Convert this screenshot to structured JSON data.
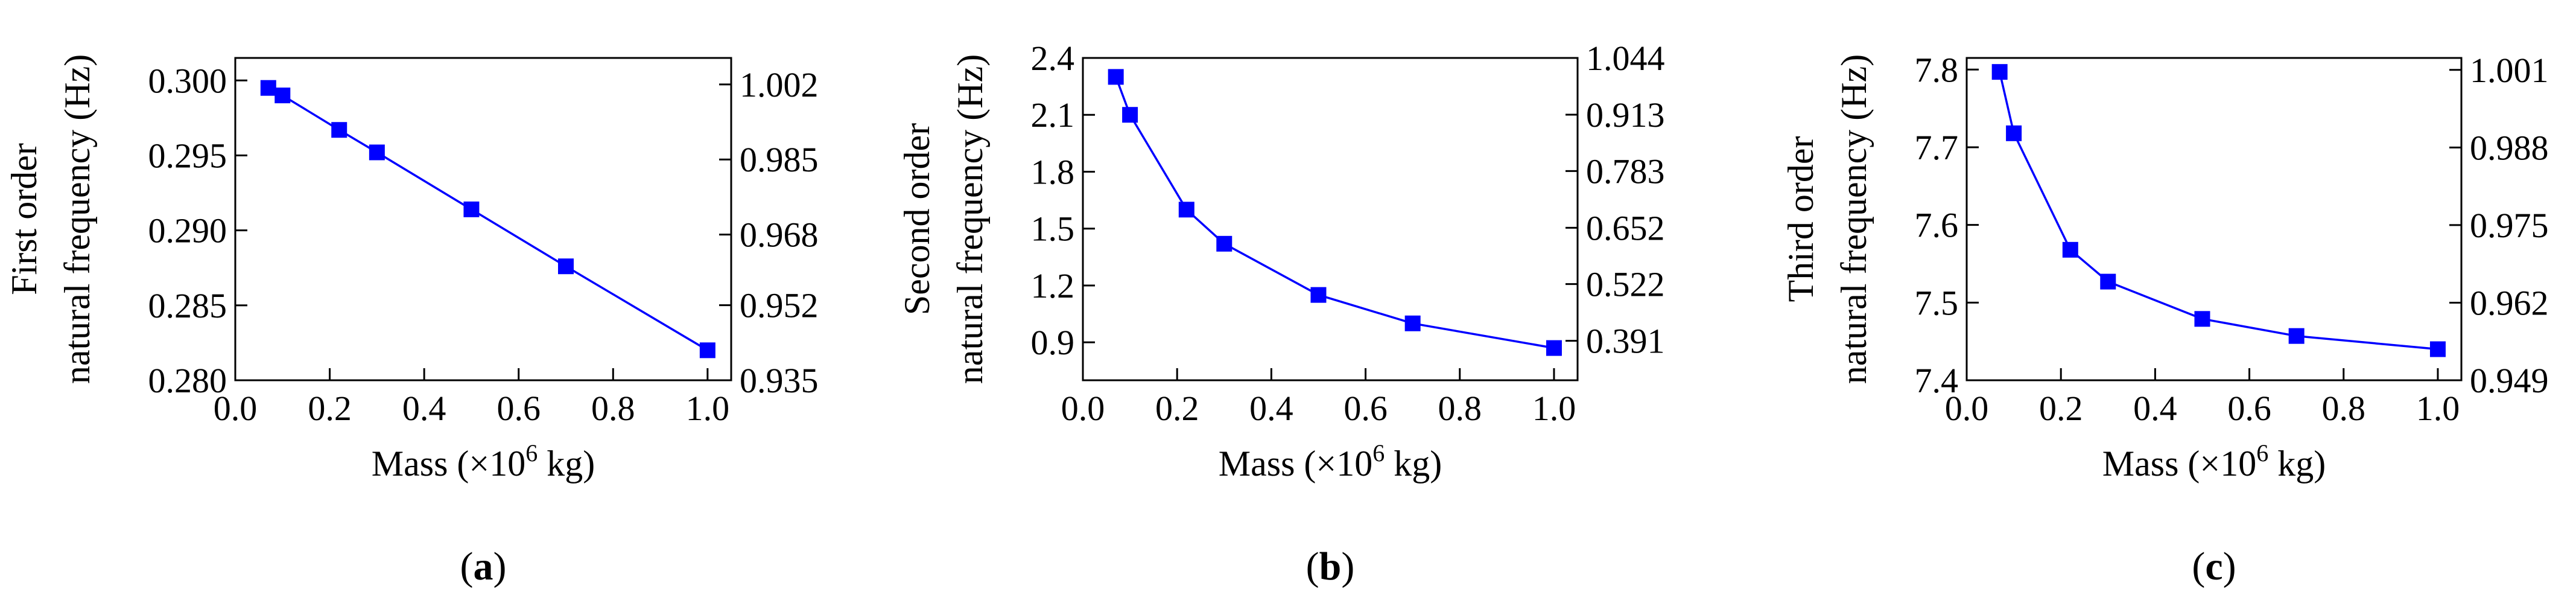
{
  "colors": {
    "series": "#0000FF",
    "axis": "#000000"
  },
  "chart_data": [
    {
      "type": "line",
      "panel_label": "a",
      "xlabel": "Mass (×10",
      "xlabel_exp": "6",
      "xlabel_tail": " kg)",
      "ylabel_line1": "First order",
      "ylabel_line2": "natural frequency (Hz)",
      "xlim": [
        0.0,
        1.05
      ],
      "xticks": [
        "0.0",
        "0.2",
        "0.4",
        "0.6",
        "0.8",
        "1.0"
      ],
      "xtick_values": [
        0.0,
        0.2,
        0.4,
        0.6,
        0.8,
        1.0
      ],
      "ylim": [
        0.28,
        0.3015
      ],
      "yticks": [
        "0.280",
        "0.285",
        "0.290",
        "0.295",
        "0.300"
      ],
      "ytick_values": [
        0.28,
        0.285,
        0.29,
        0.295,
        0.3
      ],
      "right_ylim": [
        0.935,
        1.008
      ],
      "right_yticks": [
        "0.935",
        "0.952",
        "0.968",
        "0.985",
        "1.002"
      ],
      "right_ytick_values": [
        0.935,
        0.952,
        0.968,
        0.985,
        1.002
      ],
      "series": [
        {
          "name": "First order natural frequency",
          "x": [
            0.07,
            0.1,
            0.22,
            0.3,
            0.5,
            0.7,
            1.0
          ],
          "y": [
            0.2995,
            0.299,
            0.2967,
            0.2952,
            0.2914,
            0.2876,
            0.282
          ]
        }
      ]
    },
    {
      "type": "line",
      "panel_label": "b",
      "xlabel": "Mass (×10",
      "xlabel_exp": "6",
      "xlabel_tail": " kg)",
      "ylabel_line1": "Second order",
      "ylabel_line2": "natural frequency (Hz)",
      "xlim": [
        0.0,
        1.05
      ],
      "xticks": [
        "0.0",
        "0.2",
        "0.4",
        "0.6",
        "0.8",
        "1.0"
      ],
      "xtick_values": [
        0.0,
        0.2,
        0.4,
        0.6,
        0.8,
        1.0
      ],
      "ylim": [
        0.7,
        2.4
      ],
      "yticks": [
        "0.9",
        "1.2",
        "1.5",
        "1.8",
        "2.1",
        "2.4"
      ],
      "ytick_values": [
        0.9,
        1.2,
        1.5,
        1.8,
        2.1,
        2.4
      ],
      "right_ylim": [
        0.3,
        1.044
      ],
      "right_yticks": [
        "0.391",
        "0.522",
        "0.652",
        "0.783",
        "0.913",
        "1.044"
      ],
      "right_ytick_values": [
        0.391,
        0.522,
        0.652,
        0.783,
        0.913,
        1.044
      ],
      "series": [
        {
          "name": "Second order natural frequency",
          "x": [
            0.07,
            0.1,
            0.22,
            0.3,
            0.5,
            0.7,
            1.0
          ],
          "y": [
            2.3,
            2.1,
            1.6,
            1.42,
            1.15,
            1.0,
            0.87
          ]
        }
      ]
    },
    {
      "type": "line",
      "panel_label": "c",
      "xlabel": "Mass (×10",
      "xlabel_exp": "6",
      "xlabel_tail": " kg)",
      "ylabel_line1": "Third order",
      "ylabel_line2": "natural frequency (Hz)",
      "xlim": [
        0.0,
        1.05
      ],
      "xticks": [
        "0.0",
        "0.2",
        "0.4",
        "0.6",
        "0.8",
        "1.0"
      ],
      "xtick_values": [
        0.0,
        0.2,
        0.4,
        0.6,
        0.8,
        1.0
      ],
      "ylim": [
        7.4,
        7.815
      ],
      "yticks": [
        "7.4",
        "7.5",
        "7.6",
        "7.7",
        "7.8"
      ],
      "ytick_values": [
        7.4,
        7.5,
        7.6,
        7.7,
        7.8
      ],
      "right_ylim": [
        0.949,
        1.003
      ],
      "right_yticks": [
        "0.949",
        "0.962",
        "0.975",
        "0.988",
        "1.001"
      ],
      "right_ytick_values": [
        0.949,
        0.962,
        0.975,
        0.988,
        1.001
      ],
      "series": [
        {
          "name": "Third order natural frequency",
          "x": [
            0.07,
            0.1,
            0.22,
            0.3,
            0.5,
            0.7,
            1.0
          ],
          "y": [
            7.797,
            7.718,
            7.568,
            7.527,
            7.479,
            7.457,
            7.44
          ]
        }
      ]
    }
  ]
}
